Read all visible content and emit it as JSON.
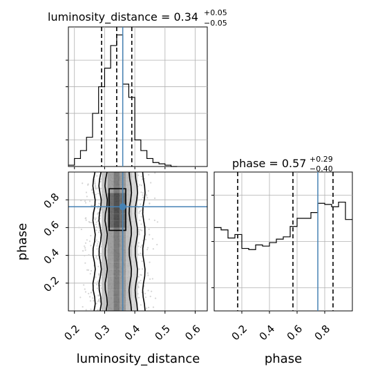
{
  "chart_data": {
    "type": "corner",
    "panels": {
      "luminosity_distance_hist": {
        "type": "histogram-step",
        "title_param": "luminosity_distance",
        "title_value": "0.34",
        "title_plus": "+0.05",
        "title_minus": "−0.05",
        "title_eq": " = ",
        "xlim": [
          0.18,
          0.64
        ],
        "bin_edges": [
          0.18,
          0.2,
          0.22,
          0.24,
          0.26,
          0.28,
          0.3,
          0.32,
          0.34,
          0.36,
          0.38,
          0.4,
          0.42,
          0.44,
          0.46,
          0.48,
          0.5,
          0.52,
          0.54
        ],
        "counts": [
          1,
          6,
          12,
          22,
          40,
          60,
          74,
          91,
          99,
          62,
          52,
          20,
          12,
          6,
          3,
          2,
          1,
          0
        ],
        "quantiles": [
          0.29,
          0.34,
          0.39
        ],
        "truth": 0.36
      },
      "phase_hist": {
        "type": "histogram-step",
        "title_param": "phase",
        "title_value": "0.57",
        "title_plus": "+0.29",
        "title_minus": "−0.40",
        "title_eq": " = ",
        "xlim": [
          0.0,
          1.0
        ],
        "bin_edges": [
          0.0,
          0.05,
          0.1,
          0.15,
          0.2,
          0.25,
          0.3,
          0.35,
          0.4,
          0.45,
          0.5,
          0.55,
          0.6,
          0.65,
          0.7,
          0.75,
          0.8,
          0.85,
          0.9,
          0.95,
          1.0
        ],
        "counts": [
          72,
          70,
          63,
          66,
          54,
          53,
          57,
          56,
          59,
          62,
          64,
          73,
          80,
          80,
          85,
          93,
          92,
          90,
          94,
          79
        ],
        "quantiles": [
          0.17,
          0.57,
          0.86
        ],
        "truth": 0.75
      },
      "joint": {
        "type": "2d-density-contour",
        "x_param": "luminosity_distance",
        "y_param": "phase",
        "xlim": [
          0.18,
          0.64
        ],
        "ylim": [
          0.0,
          1.0
        ],
        "truth": [
          0.36,
          0.75
        ]
      }
    },
    "x_ticks_lum": [
      "0.2",
      "0.3",
      "0.4",
      "0.5",
      "0.6"
    ],
    "y_ticks_phase": [
      "0.2",
      "0.4",
      "0.6",
      "0.8"
    ],
    "x_ticks_phase": [
      "0.2",
      "0.4",
      "0.6",
      "0.8"
    ],
    "xlabel_left": "luminosity_distance",
    "ylabel_left": "phase",
    "xlabel_right": "phase",
    "grid": true,
    "colors": {
      "hist": "#000000",
      "quantile": "#000000",
      "truth": "#4682b4",
      "grid": "#b0b0b0",
      "density_dark": "#333333",
      "scatter": "#d0d0d0"
    }
  }
}
